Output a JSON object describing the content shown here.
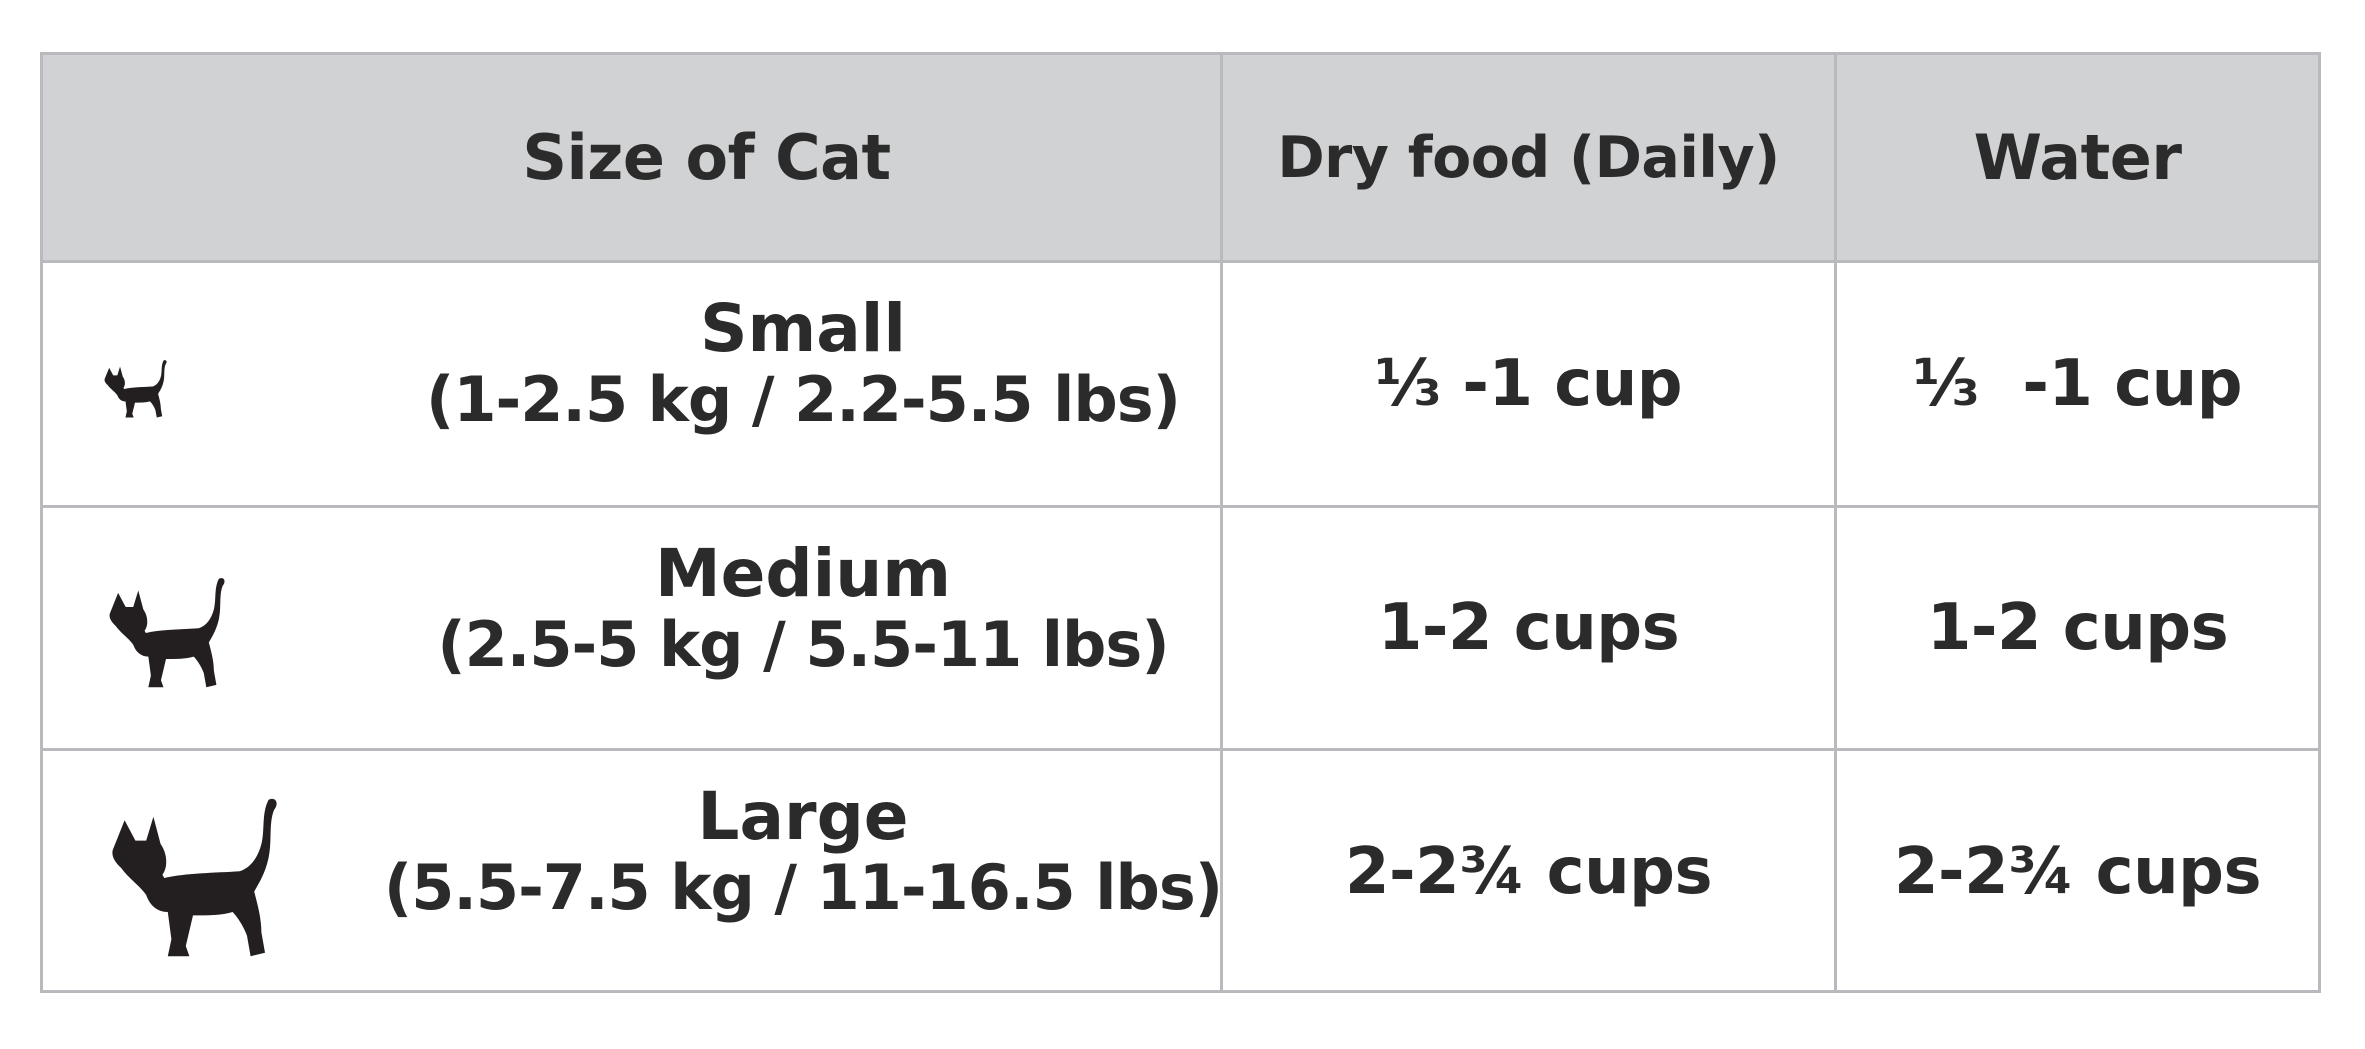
{
  "table": {
    "headers": {
      "size": "Size of Cat",
      "dry_food": "Dry food (Daily)",
      "water": "Water"
    },
    "rows": [
      {
        "icon": "small-cat-silhouette-icon",
        "size_name": "Small",
        "size_range": "(1-2.5 kg / 2.2-5.5 lbs)",
        "dry_food": "⅓ -1 cup",
        "water": "⅓  -1 cup"
      },
      {
        "icon": "medium-cat-silhouette-icon",
        "size_name": "Medium",
        "size_range": "(2.5-5 kg / 5.5-11 lbs)",
        "dry_food": "1-2 cups",
        "water": "1-2 cups"
      },
      {
        "icon": "large-cat-silhouette-icon",
        "size_name": "Large",
        "size_range": "(5.5-7.5 kg / 11-16.5 lbs)",
        "dry_food": "2-2¾ cups",
        "water": "2-2¾ cups"
      }
    ],
    "colors": {
      "header_bg": "#d1d2d4",
      "border": "#b9babd",
      "text": "#2b2b2b",
      "icon": "#231f20"
    }
  }
}
